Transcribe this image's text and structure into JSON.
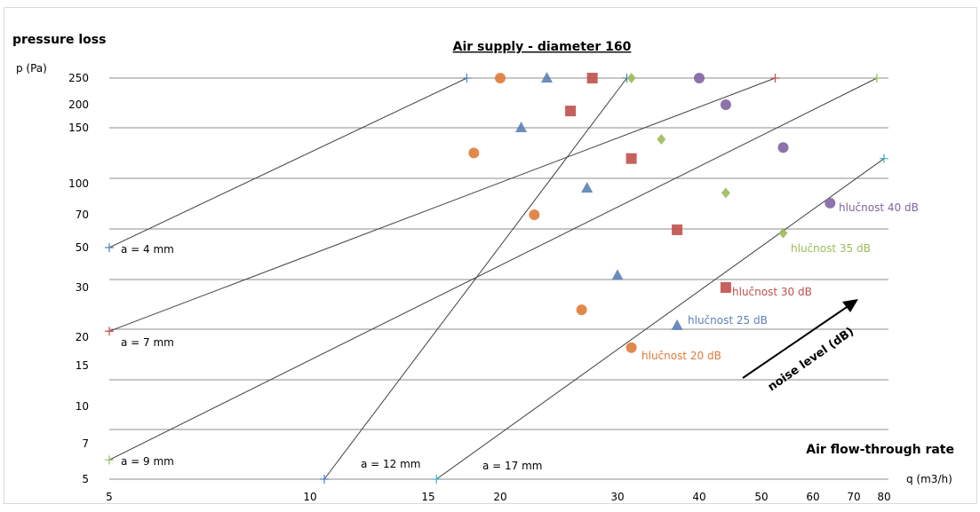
{
  "chart_data": {
    "type": "line",
    "title": "Air supply - diameter 160",
    "ylabel_top": "pressure loss",
    "ylabel": "p (Pa)",
    "xlabel_title": "Air flow-through rate",
    "xlabel": "q (m3/h)",
    "x_scale": "log",
    "y_scale": "log",
    "xlim": [
      5,
      80
    ],
    "ylim": [
      5,
      250
    ],
    "x_ticks": [
      5,
      10,
      15,
      20,
      30,
      40,
      50,
      60,
      70,
      80
    ],
    "y_ticks": [
      5,
      7,
      10,
      15,
      20,
      30,
      50,
      70,
      100,
      150,
      200,
      250
    ],
    "grid": "horizontal",
    "noise_arrow_label": "noise level (dB)",
    "series": [
      {
        "name": "a = 4 mm",
        "color": "#404040",
        "marker_color": "#4f81bd",
        "start": [
          5,
          50
        ],
        "end": [
          17.5,
          250
        ]
      },
      {
        "name": "a = 7 mm",
        "color": "#404040",
        "marker_color": "#c0504d",
        "start": [
          5,
          21
        ],
        "end": [
          52.5,
          250
        ]
      },
      {
        "name": "a = 9 mm",
        "color": "#404040",
        "marker_color": "#9bbb59",
        "start": [
          5,
          6
        ],
        "end": [
          77.5,
          250
        ]
      },
      {
        "name": "a = 12 mm",
        "color": "#404040",
        "marker_color": "#4f81bd",
        "start": [
          10.5,
          5
        ],
        "end": [
          31,
          250
        ]
      },
      {
        "name": "a = 17 mm",
        "color": "#404040",
        "marker_color": "#4bacc6",
        "start": [
          15.5,
          5
        ],
        "end": [
          80,
          120
        ]
      }
    ],
    "noise_series": [
      {
        "name": "hlučnost 20 dB",
        "marker": "circle",
        "color": "#e07b39",
        "points": [
          [
            20,
            250
          ],
          [
            18,
            125
          ],
          [
            22.5,
            70
          ],
          [
            26.5,
            25
          ],
          [
            31.5,
            18
          ]
        ]
      },
      {
        "name": "hlučnost 25 dB",
        "marker": "triangle",
        "color": "#5b7fb5",
        "points": [
          [
            23.5,
            250
          ],
          [
            21.5,
            150
          ],
          [
            27,
            95
          ],
          [
            30,
            35
          ],
          [
            37,
            22
          ]
        ]
      },
      {
        "name": "hlučnost 30 dB",
        "marker": "square",
        "color": "#c0504d",
        "points": [
          [
            27.5,
            250
          ],
          [
            25.5,
            185
          ],
          [
            31.5,
            120
          ],
          [
            37,
            60
          ],
          [
            44,
            30
          ]
        ]
      },
      {
        "name": "hlučnost 35 dB",
        "marker": "diamond",
        "color": "#9bbb59",
        "points": [
          [
            31.5,
            250
          ],
          [
            35,
            138
          ],
          [
            44,
            90
          ],
          [
            54,
            58
          ]
        ]
      },
      {
        "name": "hlučnost 40 dB",
        "marker": "circle",
        "color": "#8064a2",
        "points": [
          [
            40,
            250
          ],
          [
            44,
            200
          ],
          [
            54,
            130
          ],
          [
            64,
            80
          ]
        ]
      }
    ]
  }
}
